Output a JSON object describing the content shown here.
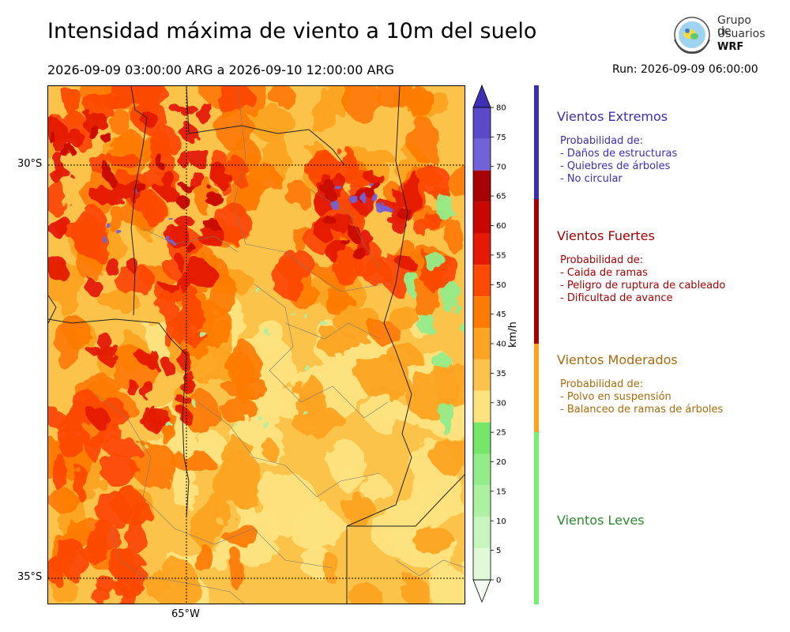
{
  "title": "Intensidad máxima de viento a 10m del suelo",
  "period": "2026-09-09 03:00:00 ARG  a  2026-09-10 12:00:00 ARG",
  "run": "Run: 2026-09-09 06:00:00",
  "logo": {
    "line1": "Grupo de",
    "line2": "Usuarios",
    "line3": "WRF"
  },
  "map": {
    "lat_labels": [
      "30°S",
      "35°S"
    ],
    "lon_labels": [
      "65°W"
    ]
  },
  "colorbar": {
    "unit": "km/h",
    "ticks": [
      "0",
      "5",
      "10",
      "15",
      "20",
      "25",
      "30",
      "35",
      "40",
      "45",
      "50",
      "55",
      "60",
      "65",
      "70",
      "75",
      "80"
    ],
    "colors": [
      "#f2fdf0",
      "#e0f9d9",
      "#c8f4bd",
      "#aef0a2",
      "#93ec8a",
      "#76e668",
      "#fde37f",
      "#fcc34c",
      "#fca321",
      "#fd7b04",
      "#fc4a04",
      "#e41a05",
      "#c80702",
      "#a70205",
      "#7262d8",
      "#5b49c9",
      "#3f2fb5"
    ]
  },
  "categories": [
    {
      "title": "Vientos Extremos",
      "color": "#3b2db1",
      "lines": [
        "Probabilidad de:",
        "- Daños de estructuras",
        "- Quiebres de árboles",
        "- No circular"
      ]
    },
    {
      "title": "Vientos Fuertes",
      "color": "#a50000",
      "lines": [
        "Probabilidad de:",
        "- Caida de ramas",
        "- Peligro de ruptura de cableado",
        "- Dificultad de avance"
      ]
    },
    {
      "title": "Vientos Moderados",
      "color": "#a86a0a",
      "lines": [
        "Probabilidad de:",
        "- Polvo en suspensión",
        "- Balanceo de ramas de árboles"
      ]
    },
    {
      "title": "Vientos Leves",
      "color": "#2a8a2a",
      "lines": []
    }
  ],
  "category_bar_colors": [
    "#3b2db1",
    "#a50000",
    "#fca321",
    "#76f070"
  ]
}
